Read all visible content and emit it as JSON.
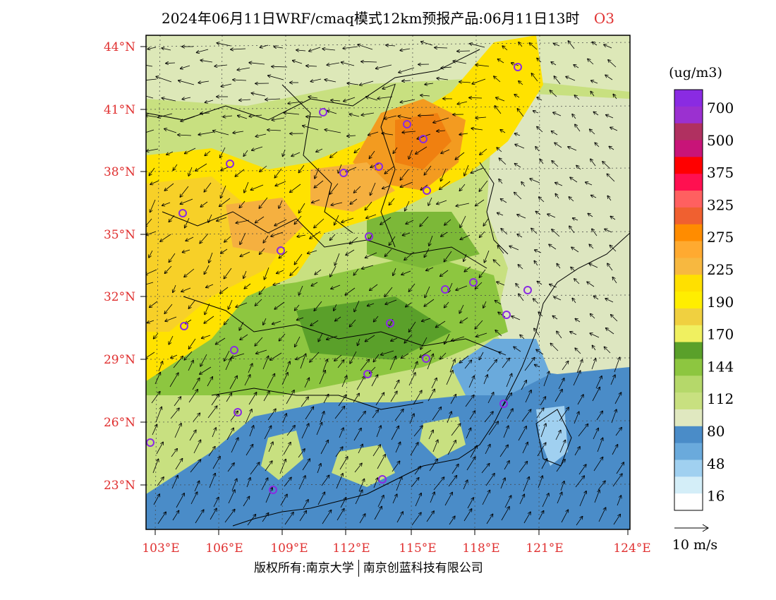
{
  "title": {
    "text": "2024年06月11日WRF/cmaq模式12km预报产品:06月11日13时",
    "species": "O3"
  },
  "map": {
    "lat_labels": [
      "44°N",
      "41°N",
      "38°N",
      "35°N",
      "32°N",
      "29°N",
      "26°N",
      "23°N"
    ],
    "lon_labels": [
      "103°E",
      "106°E",
      "109°E",
      "112°E",
      "115°E",
      "118°E",
      "121°E",
      "124°E"
    ],
    "stations_icon": "circle-marker-icon",
    "wind_icon": "wind-arrow-icon"
  },
  "colorbar": {
    "unit": "(ug/m3)",
    "labels": [
      "700",
      "500",
      "375",
      "325",
      "275",
      "225",
      "190",
      "170",
      "144",
      "112",
      "80",
      "48",
      "16"
    ],
    "colors": [
      "#8a2be2",
      "#9b30d0",
      "#b03060",
      "#c81478",
      "#ff0000",
      "#ff1050",
      "#ff6060",
      "#f06030",
      "#ff8c00",
      "#ffaa30",
      "#f7b840",
      "#ffe000",
      "#ffee00",
      "#f0d040",
      "#f0f060",
      "#5aa02a",
      "#8dc640",
      "#b5d86a",
      "#c8e080",
      "#e0e8c0",
      "#4a8cc8",
      "#6aaadc",
      "#a0d0f0",
      "#d4eef8",
      "#ffffff"
    ],
    "wind_scale_label": "10 m/s"
  },
  "copyright": {
    "left": "版权所有:南京大学",
    "right": "南京创蓝科技有限公司"
  }
}
